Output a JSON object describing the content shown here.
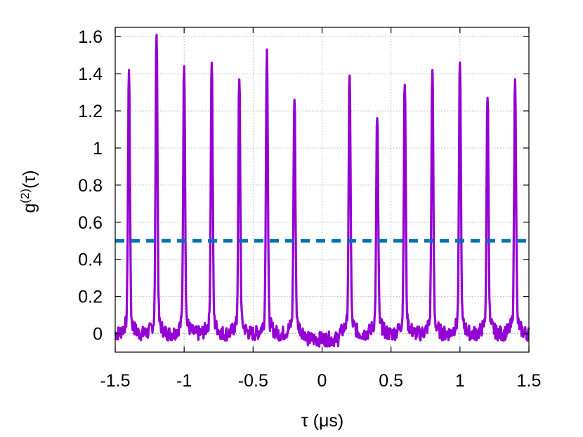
{
  "chart_data": {
    "type": "line",
    "xlabel": "τ (μs)",
    "ylabel": {
      "main": "g",
      "sup": "(2)",
      "rest": "(τ)"
    },
    "xlim": [
      -1.5,
      1.5
    ],
    "ylim": [
      -0.1,
      1.65
    ],
    "xticks": [
      -1.5,
      -1,
      -0.5,
      0,
      0.5,
      1,
      1.5
    ],
    "xtick_labels": [
      "-1.5",
      "-1",
      "-0.5",
      "0",
      "0.5",
      "1",
      "1.5"
    ],
    "yticks": [
      0,
      0.2,
      0.4,
      0.6,
      0.8,
      1,
      1.2,
      1.4,
      1.6
    ],
    "ytick_labels": [
      "0",
      "0.2",
      "0.4",
      "0.6",
      "0.8",
      "1",
      "1.2",
      "1.4",
      "1.6"
    ],
    "grid": true,
    "series": [
      {
        "style": "solid",
        "color": "#9400d3",
        "peaks": [
          {
            "x": -1.4,
            "y": 1.42
          },
          {
            "x": -1.2,
            "y": 1.61
          },
          {
            "x": -1.0,
            "y": 1.44
          },
          {
            "x": -0.8,
            "y": 1.46
          },
          {
            "x": -0.6,
            "y": 1.37
          },
          {
            "x": -0.4,
            "y": 1.53
          },
          {
            "x": -0.2,
            "y": 1.26
          },
          {
            "x": 0.2,
            "y": 1.39
          },
          {
            "x": 0.4,
            "y": 1.16
          },
          {
            "x": 0.6,
            "y": 1.34
          },
          {
            "x": 0.8,
            "y": 1.42
          },
          {
            "x": 1.0,
            "y": 1.46
          },
          {
            "x": 1.2,
            "y": 1.27
          },
          {
            "x": 1.4,
            "y": 1.37
          }
        ],
        "baseline": 0.0
      },
      {
        "style": "dashed",
        "color": "#0072b2",
        "y": 0.5
      }
    ]
  }
}
